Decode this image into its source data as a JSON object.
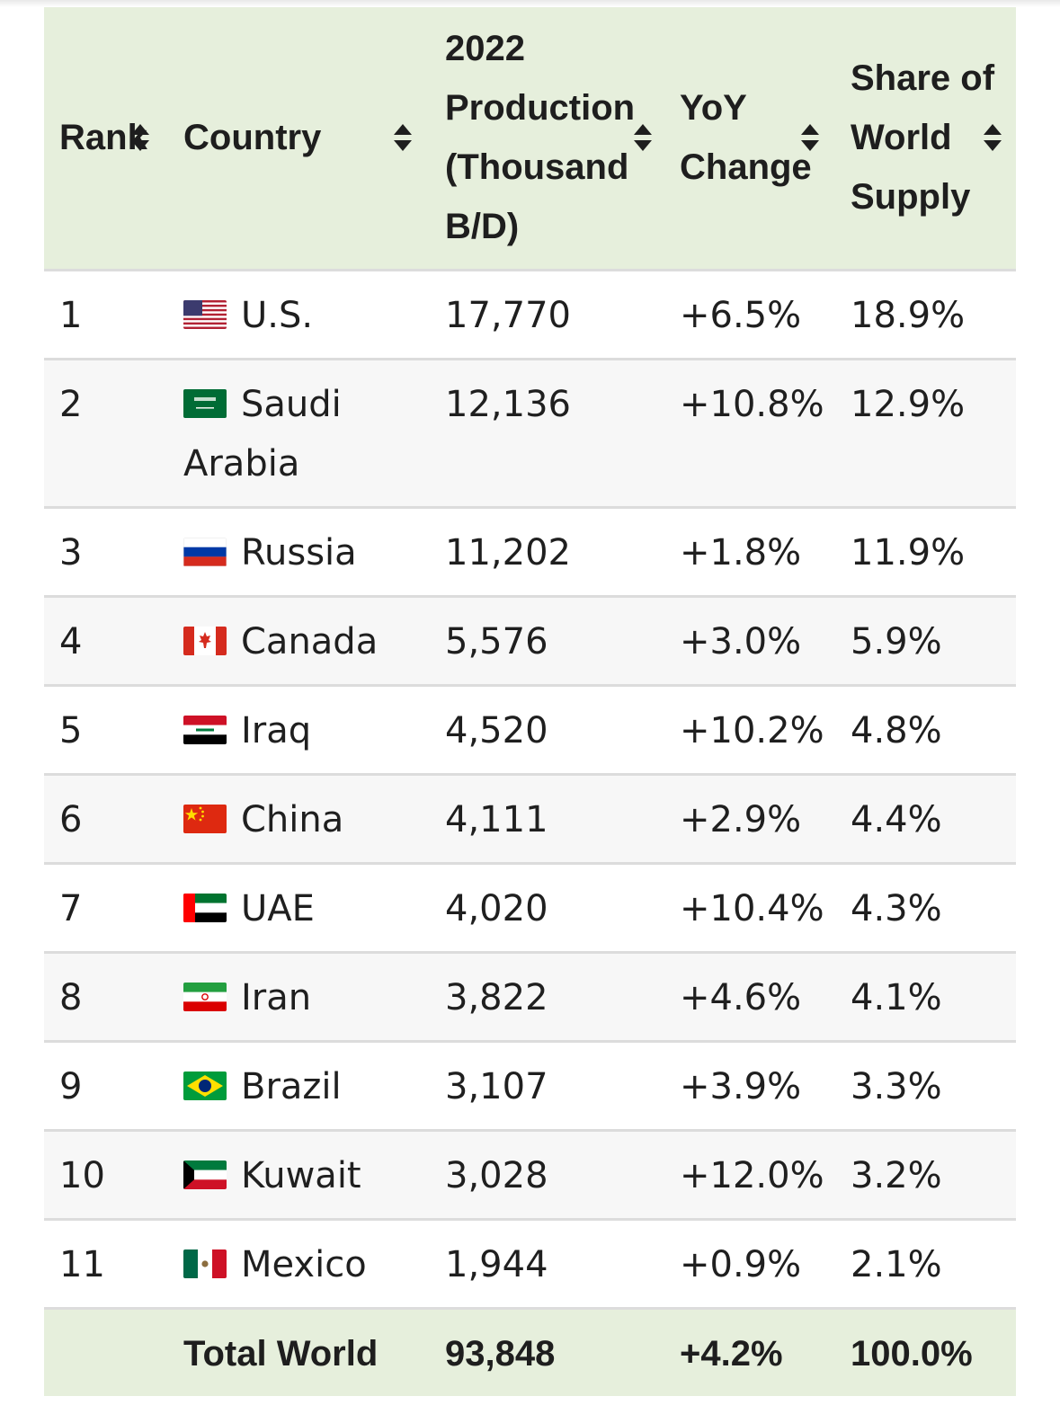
{
  "table": {
    "headers": {
      "rank": "Rank",
      "country": "Country",
      "production": [
        "2022",
        "Production",
        "(Thousand",
        "B/D)"
      ],
      "yoy": [
        "YoY",
        "Change"
      ],
      "share": [
        "Share of",
        "World",
        "Supply"
      ]
    },
    "rows": [
      {
        "rank": "1",
        "flag": "flag-us",
        "country": "U.S.",
        "production": "17,770",
        "yoy": "+6.5%",
        "share": "18.9%"
      },
      {
        "rank": "2",
        "flag": "flag-saudi-arabia",
        "country": "Saudi Arabia",
        "production": "12,136",
        "yoy": "+10.8%",
        "share": "12.9%"
      },
      {
        "rank": "3",
        "flag": "flag-russia",
        "country": "Russia",
        "production": "11,202",
        "yoy": "+1.8%",
        "share": "11.9%"
      },
      {
        "rank": "4",
        "flag": "flag-canada",
        "country": "Canada",
        "production": "5,576",
        "yoy": "+3.0%",
        "share": "5.9%"
      },
      {
        "rank": "5",
        "flag": "flag-iraq",
        "country": "Iraq",
        "production": "4,520",
        "yoy": "+10.2%",
        "share": "4.8%"
      },
      {
        "rank": "6",
        "flag": "flag-china",
        "country": "China",
        "production": "4,111",
        "yoy": "+2.9%",
        "share": "4.4%"
      },
      {
        "rank": "7",
        "flag": "flag-uae",
        "country": "UAE",
        "production": "4,020",
        "yoy": "+10.4%",
        "share": "4.3%"
      },
      {
        "rank": "8",
        "flag": "flag-iran",
        "country": "Iran",
        "production": "3,822",
        "yoy": "+4.6%",
        "share": "4.1%"
      },
      {
        "rank": "9",
        "flag": "flag-brazil",
        "country": "Brazil",
        "production": "3,107",
        "yoy": "+3.9%",
        "share": "3.3%"
      },
      {
        "rank": "10",
        "flag": "flag-kuwait",
        "country": "Kuwait",
        "production": "3,028",
        "yoy": "+12.0%",
        "share": "3.2%"
      },
      {
        "rank": "11",
        "flag": "flag-mexico",
        "country": "Mexico",
        "production": "1,944",
        "yoy": "+0.9%",
        "share": "2.1%"
      }
    ],
    "total": {
      "label": "Total World",
      "production": "93,848",
      "yoy": "+4.2%",
      "share": "100.0%"
    }
  },
  "colors": {
    "header_bg": "#e6efdc",
    "row_alt_bg": "#f7f7f7",
    "divider": "#dcdcdc"
  }
}
